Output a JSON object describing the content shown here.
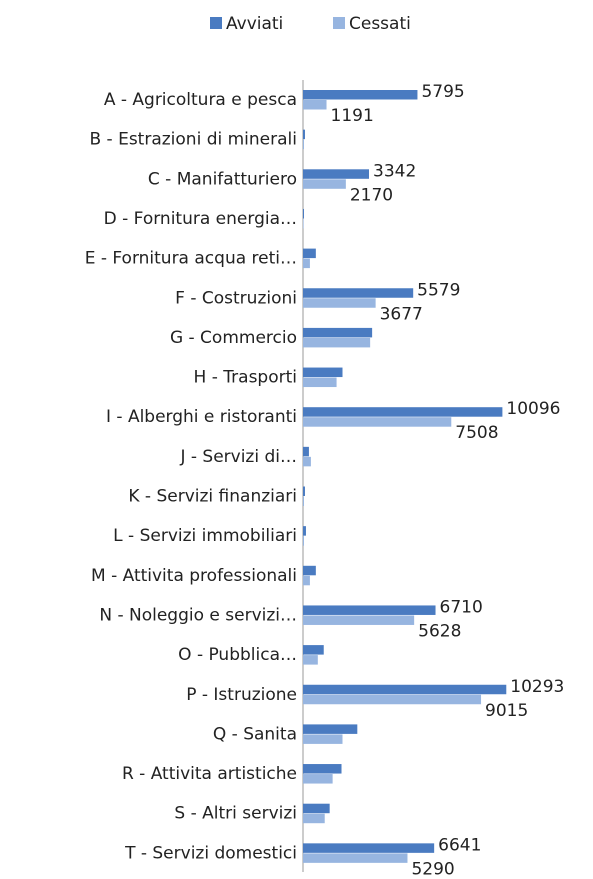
{
  "chart_data": {
    "type": "bar",
    "orientation": "horizontal",
    "categories": [
      "A - Agricoltura e pesca",
      "B - Estrazioni di minerali",
      "C - Manifatturiero",
      "D - Fornitura energia…",
      "E - Fornitura acqua reti…",
      "F - Costruzioni",
      "G - Commercio",
      "H - Trasporti",
      "I - Alberghi e ristoranti",
      "J - Servizi di…",
      "K - Servizi finanziari",
      "L - Servizi immobiliari",
      "M - Attivita professionali",
      "N - Noleggio e servizi…",
      "O - Pubblica…",
      "P - Istruzione",
      "Q - Sanita",
      "R - Attivita artistiche",
      "S - Altri servizi",
      "T - Servizi domestici"
    ],
    "series": [
      {
        "name": "Avviati",
        "color": "#4a7bc1",
        "values": [
          5795,
          100,
          3342,
          50,
          650,
          5579,
          3500,
          2000,
          10096,
          300,
          100,
          150,
          650,
          6710,
          1050,
          10293,
          2750,
          1950,
          1350,
          6641
        ],
        "value_labels": [
          "5795",
          null,
          "3342",
          null,
          null,
          "5579",
          null,
          null,
          "10096",
          null,
          null,
          null,
          null,
          "6710",
          null,
          "10293",
          null,
          null,
          null,
          "6641"
        ]
      },
      {
        "name": "Cessati",
        "color": "#97b5e0",
        "values": [
          1191,
          50,
          2170,
          30,
          350,
          3677,
          3400,
          1700,
          7508,
          400,
          50,
          50,
          350,
          5628,
          750,
          9015,
          2000,
          1500,
          1100,
          5290
        ],
        "value_labels": [
          "1191",
          null,
          "2170",
          null,
          null,
          "3677",
          null,
          null,
          "7508",
          null,
          null,
          null,
          null,
          "5628",
          null,
          "9015",
          null,
          null,
          null,
          "5290"
        ]
      }
    ],
    "xlim": [
      0,
      12000
    ],
    "legend": "top"
  }
}
